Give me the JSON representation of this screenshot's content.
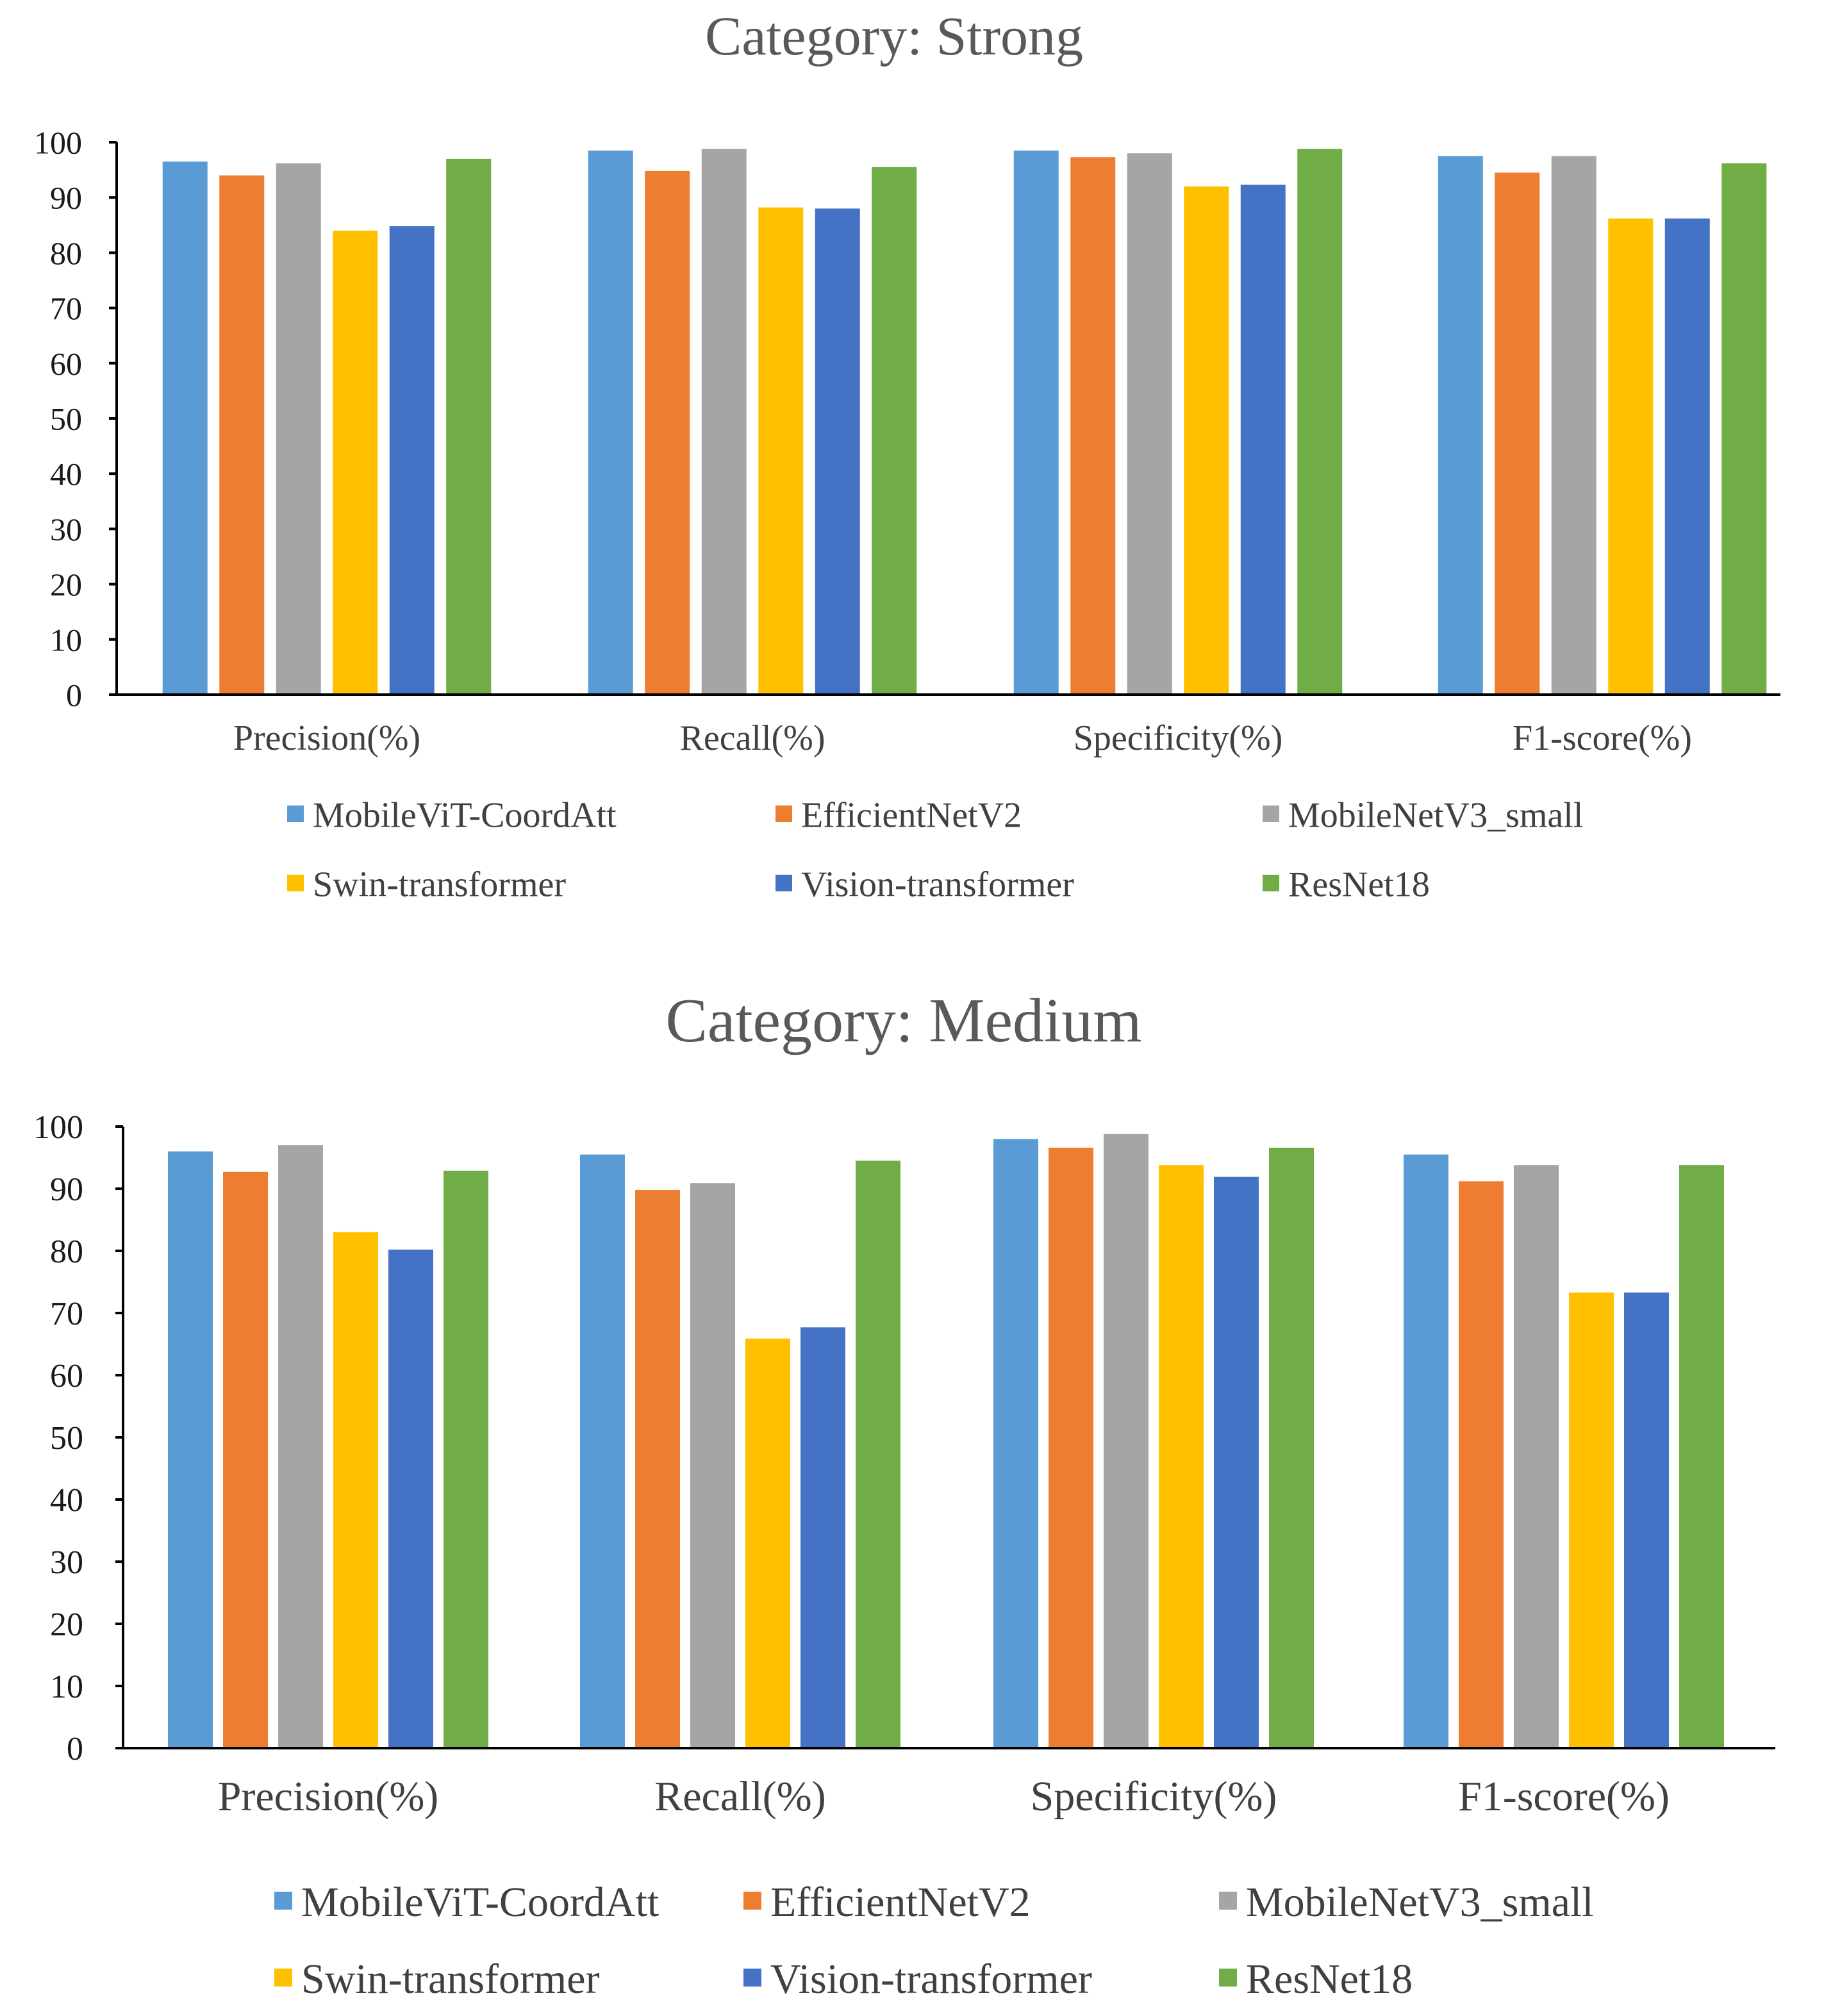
{
  "colors": {
    "MobileViT-CoordAtt": "#5B9BD5",
    "EfficientNetV2": "#ED7D31",
    "MobileNetV3_small": "#A5A5A5",
    "Swin-transformer": "#FFC000",
    "Vision-transformer": "#4472C4",
    "ResNet18": "#70AD47"
  },
  "chart_data": [
    {
      "type": "bar",
      "title": "Category: Strong",
      "categories": [
        "Precision(%)",
        "Recall(%)",
        "Specificity(%)",
        "F1-score(%)"
      ],
      "ylim": [
        0,
        100
      ],
      "yticks": [
        0,
        10,
        20,
        30,
        40,
        50,
        60,
        70,
        80,
        90,
        100
      ],
      "xlabel": "",
      "ylabel": "",
      "legend_position": "bottom",
      "series": [
        {
          "name": "MobileViT-CoordAtt",
          "values": [
            96.5,
            98.5,
            98.5,
            97.5
          ]
        },
        {
          "name": "EfficientNetV2",
          "values": [
            94.0,
            94.8,
            97.3,
            94.5
          ]
        },
        {
          "name": "MobileNetV3_small",
          "values": [
            96.2,
            98.8,
            98.0,
            97.5
          ]
        },
        {
          "name": "Swin-transformer",
          "values": [
            84.0,
            88.2,
            92.0,
            86.2
          ]
        },
        {
          "name": "Vision-transformer",
          "values": [
            84.8,
            88.0,
            92.3,
            86.2
          ]
        },
        {
          "name": "ResNet18",
          "values": [
            97.0,
            95.5,
            98.8,
            96.2
          ]
        }
      ]
    },
    {
      "type": "bar",
      "title": "Category: Medium",
      "categories": [
        "Precision(%)",
        "Recall(%)",
        "Specificity(%)",
        "F1-score(%)"
      ],
      "ylim": [
        0,
        100
      ],
      "yticks": [
        0,
        10,
        20,
        30,
        40,
        50,
        60,
        70,
        80,
        90,
        100
      ],
      "xlabel": "",
      "ylabel": "",
      "legend_position": "bottom",
      "series": [
        {
          "name": "MobileViT-CoordAtt",
          "values": [
            96.0,
            95.5,
            98.0,
            95.5
          ]
        },
        {
          "name": "EfficientNetV2",
          "values": [
            92.7,
            89.8,
            96.6,
            91.2
          ]
        },
        {
          "name": "MobileNetV3_small",
          "values": [
            97.0,
            90.9,
            98.8,
            93.8
          ]
        },
        {
          "name": "Swin-transformer",
          "values": [
            83.0,
            65.9,
            93.8,
            73.3
          ]
        },
        {
          "name": "Vision-transformer",
          "values": [
            80.2,
            67.7,
            91.9,
            73.3
          ]
        },
        {
          "name": "ResNet18",
          "values": [
            92.9,
            94.5,
            96.6,
            93.8
          ]
        }
      ]
    }
  ]
}
